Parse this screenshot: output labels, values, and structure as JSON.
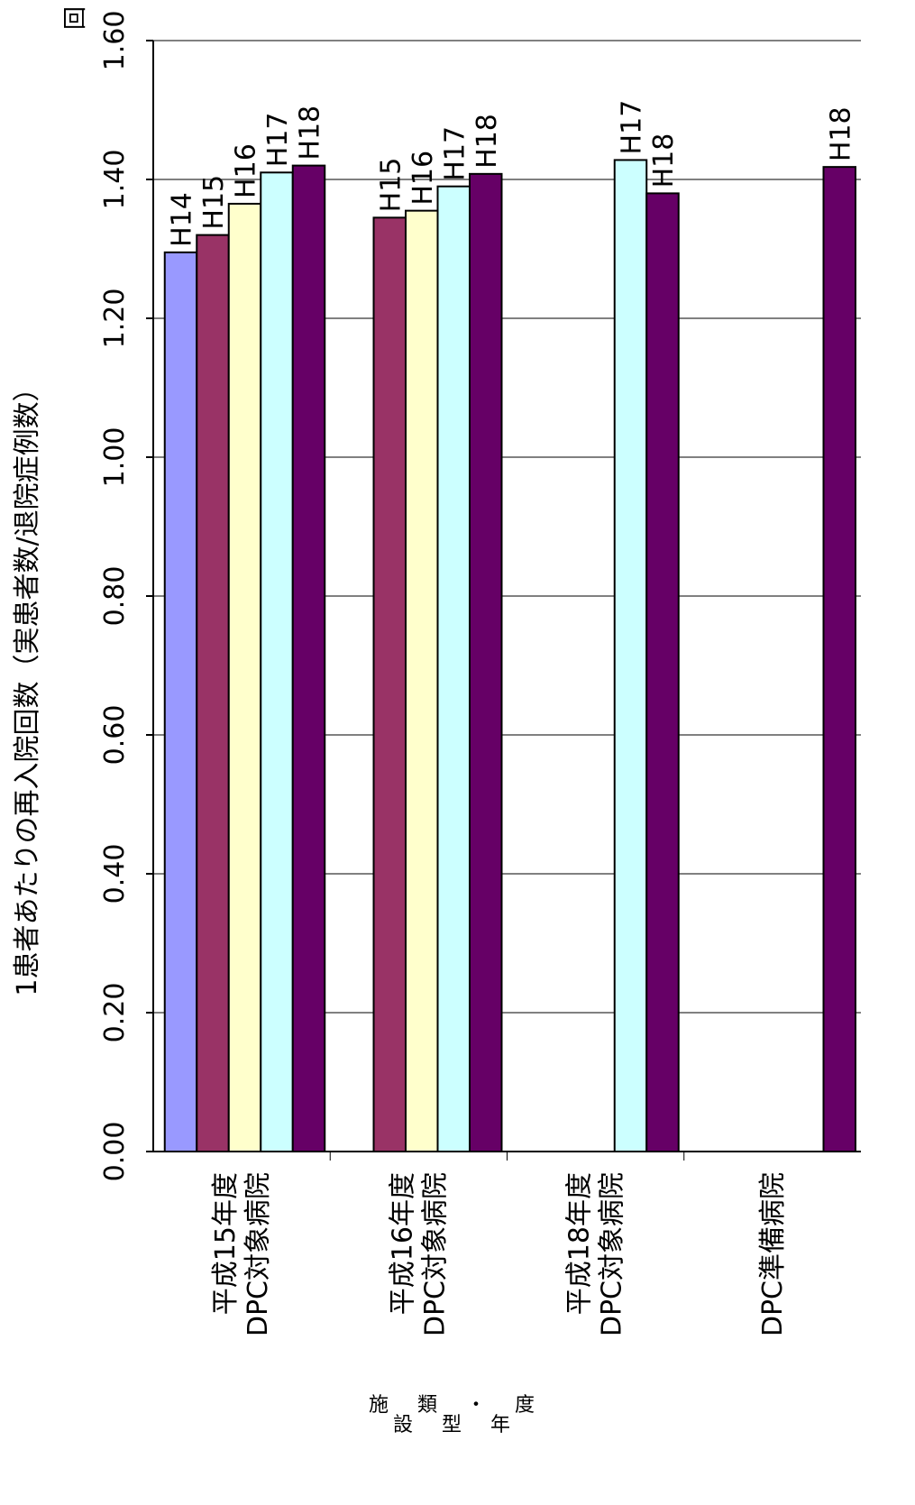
{
  "chart_data": {
    "type": "bar",
    "orientation": "rotated-90-clockwise",
    "ylabel": "1患者あたりの再入院回数（実患者数/退院症例数）",
    "xlabel": "施設類型・年度",
    "unit": "回",
    "ylim": [
      0,
      1.6
    ],
    "yticks": [
      "0.00",
      "0.20",
      "0.40",
      "0.60",
      "0.80",
      "1.00",
      "1.20",
      "1.40",
      "1.60"
    ],
    "grid": true,
    "colors": {
      "H14": "#9999ff",
      "H15": "#993366",
      "H16": "#ffffcc",
      "H17": "#ccffff",
      "H18": "#660066"
    },
    "groups": [
      {
        "name_lines": [
          "平成15年度",
          "DPC対象病院"
        ],
        "bars": [
          {
            "label": "H14",
            "value": 1.295
          },
          {
            "label": "H15",
            "value": 1.32
          },
          {
            "label": "H16",
            "value": 1.365
          },
          {
            "label": "H17",
            "value": 1.41
          },
          {
            "label": "H18",
            "value": 1.42
          }
        ]
      },
      {
        "name_lines": [
          "平成16年度",
          "DPC対象病院"
        ],
        "bars": [
          {
            "label": "H15",
            "value": 1.345
          },
          {
            "label": "H16",
            "value": 1.355
          },
          {
            "label": "H17",
            "value": 1.39
          },
          {
            "label": "H18",
            "value": 1.408
          }
        ]
      },
      {
        "name_lines": [
          "平成18年度",
          "DPC対象病院"
        ],
        "bars": [
          {
            "label": "H17",
            "value": 1.428
          },
          {
            "label": "H18",
            "value": 1.38
          }
        ]
      },
      {
        "name_lines": [
          "DPC準備病院"
        ],
        "bars": [
          {
            "label": "H18",
            "value": 1.418
          }
        ]
      }
    ]
  }
}
